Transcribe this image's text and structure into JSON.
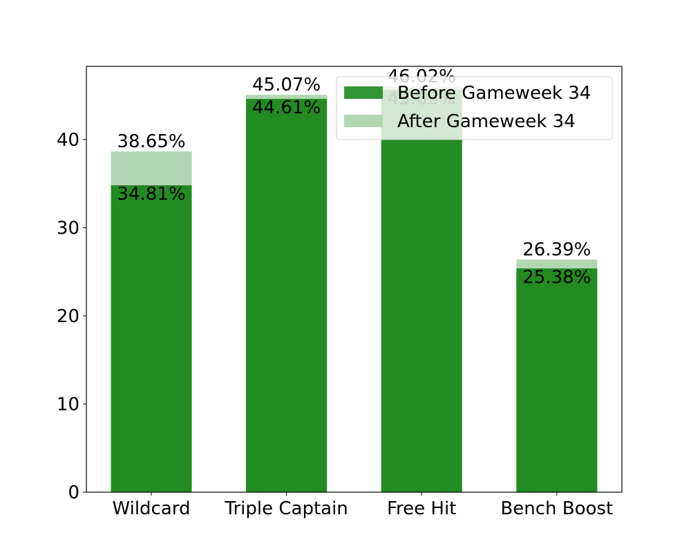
{
  "chart_data": {
    "type": "bar",
    "categories": [
      "Wildcard",
      "Triple Captain",
      "Free Hit",
      "Bench Boost"
    ],
    "series": [
      {
        "name": "Before Gameweek 34",
        "values": [
          34.81,
          44.61,
          45.63,
          25.38
        ],
        "labels": [
          "34.81%",
          "44.61%",
          "45.63%",
          "25.38%"
        ],
        "color": "#228B22"
      },
      {
        "name": "After Gameweek 34",
        "values": [
          38.65,
          45.07,
          46.02,
          26.39
        ],
        "labels": [
          "38.65%",
          "45.07%",
          "46.02%",
          "26.39%"
        ],
        "color": "#B3D7B3"
      }
    ],
    "title": "",
    "xlabel": "",
    "ylabel": "",
    "ylim": [
      0,
      48.3
    ],
    "yticks": [
      0,
      10,
      20,
      30,
      40
    ],
    "grid": false,
    "legend": "top-right"
  }
}
